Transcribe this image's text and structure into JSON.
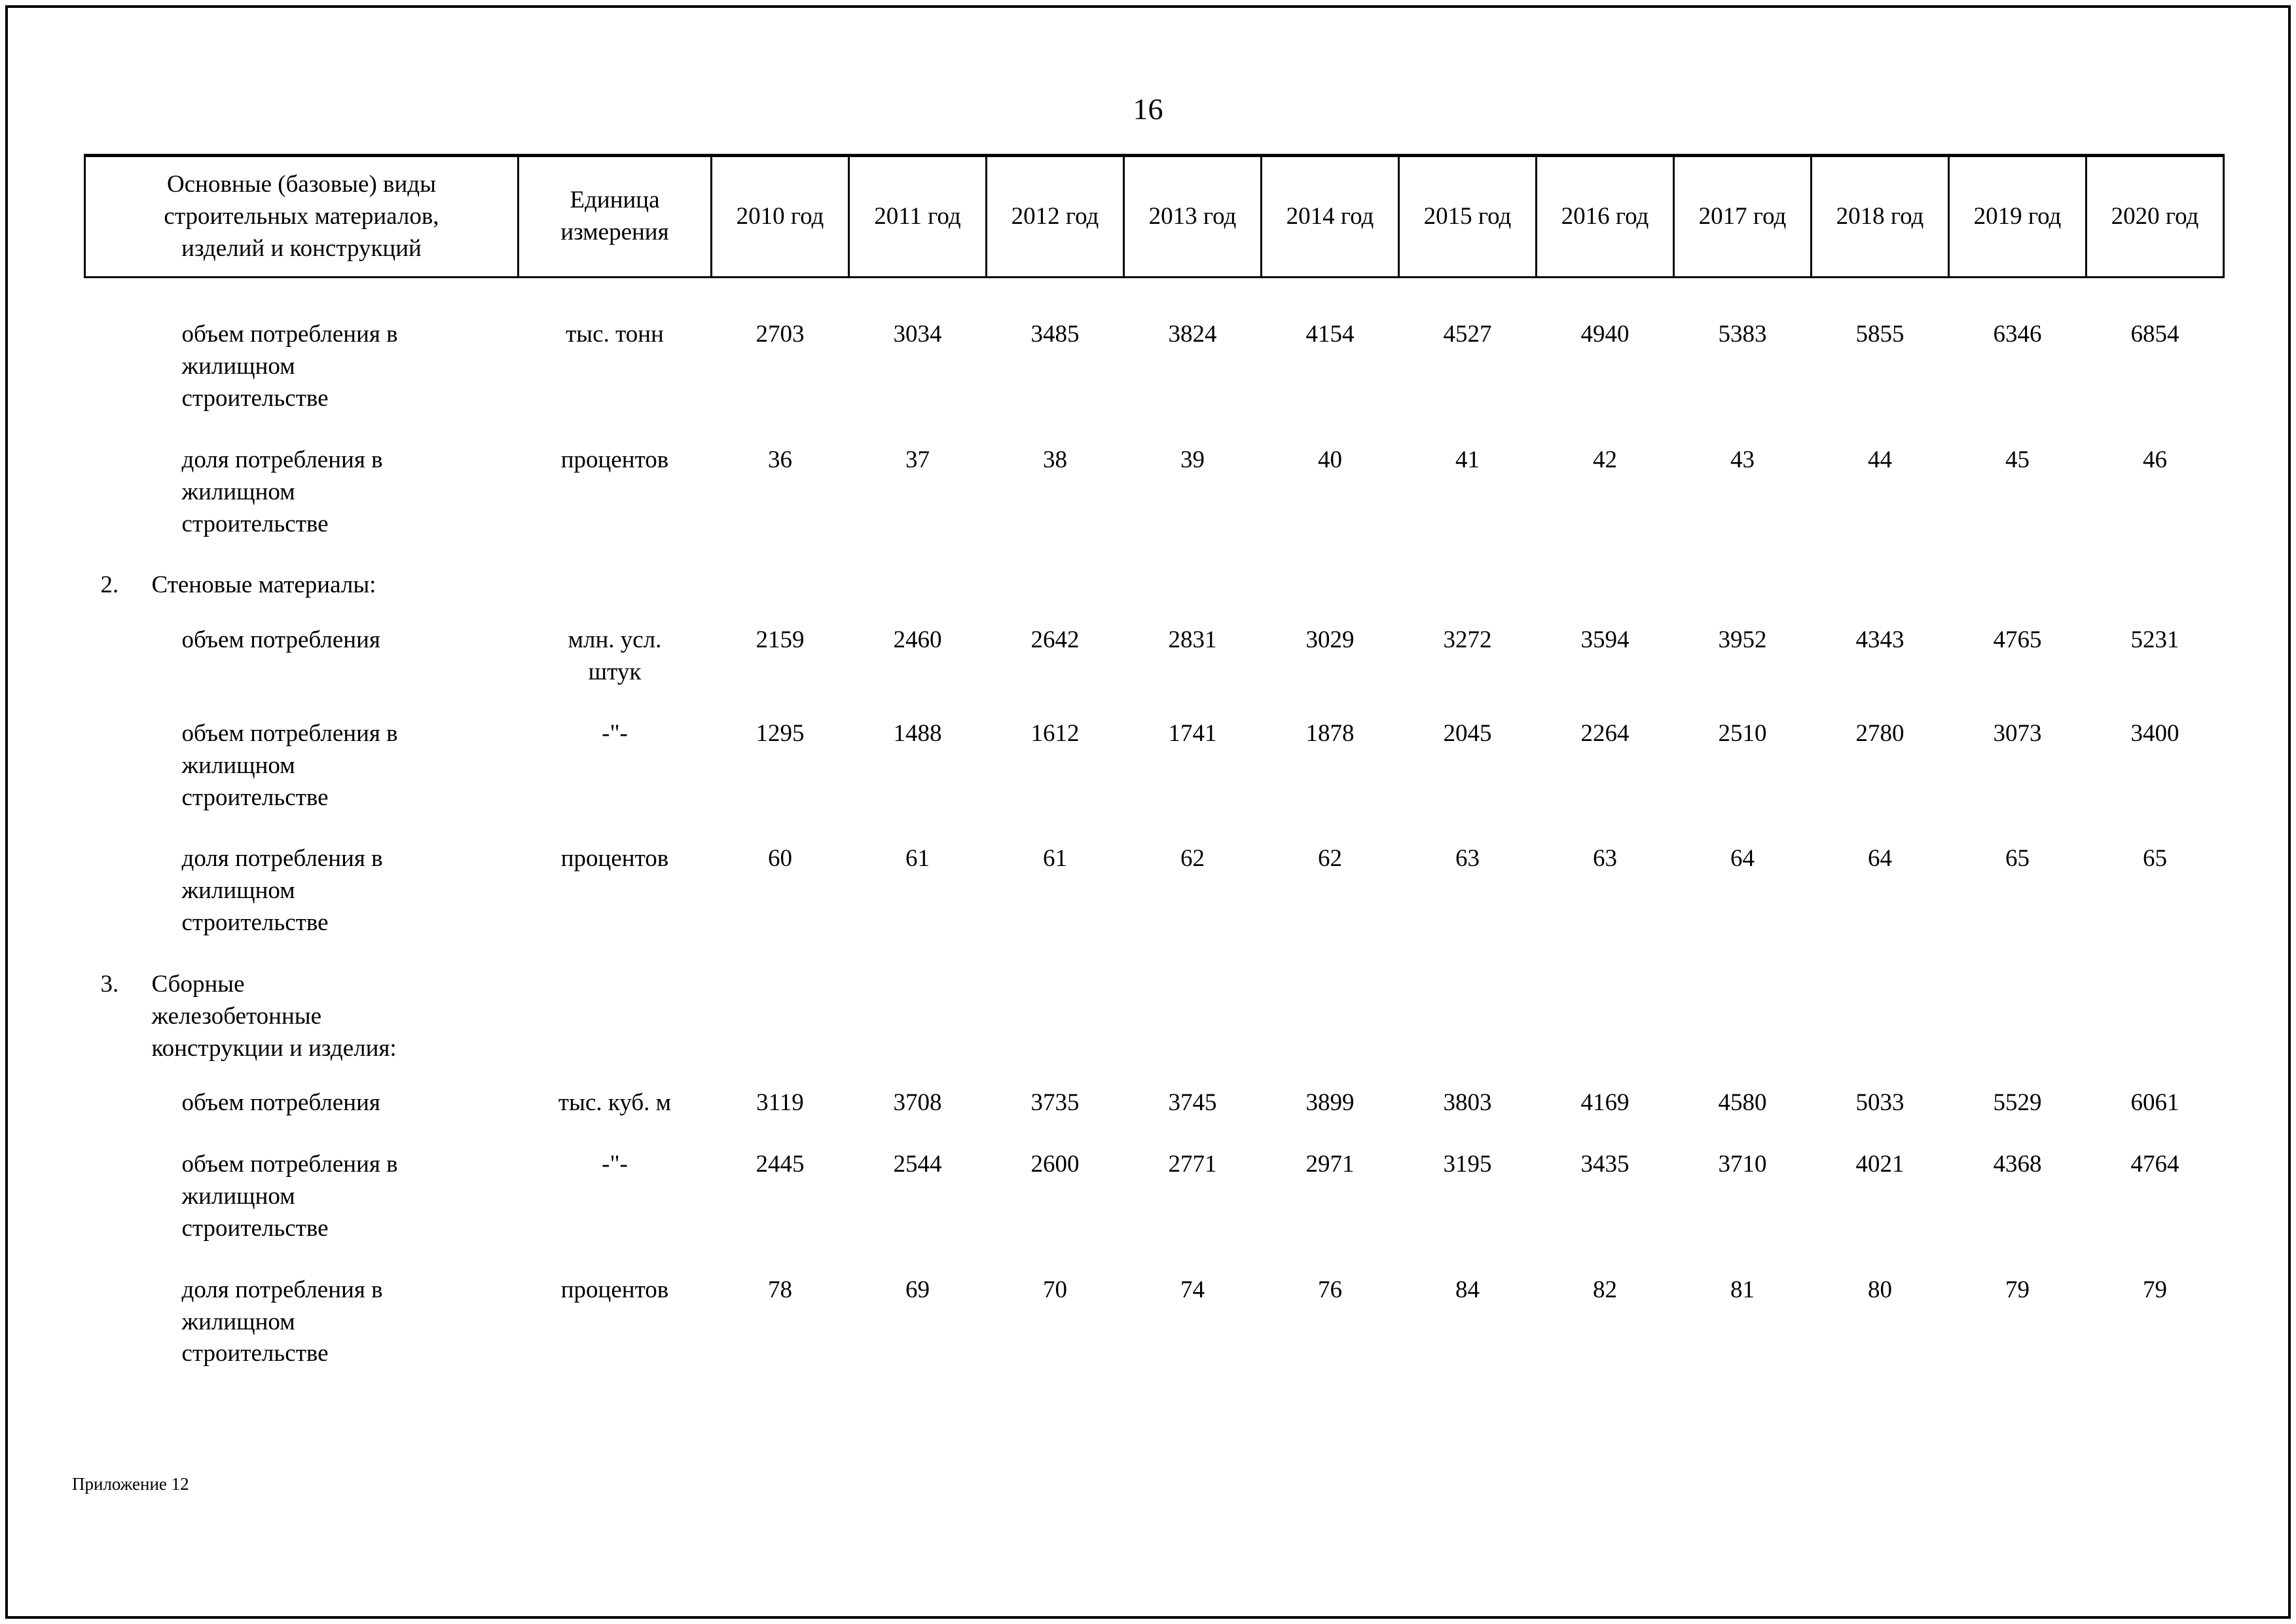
{
  "page": {
    "number": "16",
    "footer": "Приложение 12"
  },
  "table": {
    "header": {
      "materials_col": "Основные (базовые) виды\nстроительных материалов,\nизделий и конструкций",
      "unit_col": "Единица\nизмерения",
      "years": [
        "2010 год",
        "2011 год",
        "2012 год",
        "2013 год",
        "2014 год",
        "2015 год",
        "2016 год",
        "2017 год",
        "2018 год",
        "2019 год",
        "2020 год"
      ]
    },
    "rows": [
      {
        "type": "data",
        "label": "объем потребления в\nжилищном\nстроительстве",
        "unit": "тыс. тонн",
        "values": [
          "2703",
          "3034",
          "3485",
          "3824",
          "4154",
          "4527",
          "4940",
          "5383",
          "5855",
          "6346",
          "6854"
        ]
      },
      {
        "type": "data",
        "label": "доля потребления в\nжилищном\nстроительстве",
        "unit": "процентов",
        "values": [
          "36",
          "37",
          "38",
          "39",
          "40",
          "41",
          "42",
          "43",
          "44",
          "45",
          "46"
        ]
      },
      {
        "type": "section",
        "num": "2.",
        "label": "Стеновые материалы:"
      },
      {
        "type": "data",
        "label": "объем потребления",
        "unit": "млн. усл.\nштук",
        "values": [
          "2159",
          "2460",
          "2642",
          "2831",
          "3029",
          "3272",
          "3594",
          "3952",
          "4343",
          "4765",
          "5231"
        ]
      },
      {
        "type": "data",
        "label": "объем потребления в\nжилищном\nстроительстве",
        "unit": "-\"-",
        "values": [
          "1295",
          "1488",
          "1612",
          "1741",
          "1878",
          "2045",
          "2264",
          "2510",
          "2780",
          "3073",
          "3400"
        ]
      },
      {
        "type": "data",
        "label": "доля потребления в\nжилищном\nстроительстве",
        "unit": "процентов",
        "values": [
          "60",
          "61",
          "61",
          "62",
          "62",
          "63",
          "63",
          "64",
          "64",
          "65",
          "65"
        ]
      },
      {
        "type": "section",
        "num": "3.",
        "label": "Сборные\nжелезобетонные\nконструкции и изделия:"
      },
      {
        "type": "data",
        "label": "объем потребления",
        "unit": "тыс. куб. м",
        "values": [
          "3119",
          "3708",
          "3735",
          "3745",
          "3899",
          "3803",
          "4169",
          "4580",
          "5033",
          "5529",
          "6061"
        ]
      },
      {
        "type": "data",
        "label": "объем потребления в\nжилищном\nстроительстве",
        "unit": "-\"-",
        "values": [
          "2445",
          "2544",
          "2600",
          "2771",
          "2971",
          "3195",
          "3435",
          "3710",
          "4021",
          "4368",
          "4764"
        ]
      },
      {
        "type": "data",
        "label": "доля потребления в\nжилищном\nстроительстве",
        "unit": "процентов",
        "values": [
          "78",
          "69",
          "70",
          "74",
          "76",
          "84",
          "82",
          "81",
          "80",
          "79",
          "79"
        ]
      }
    ]
  }
}
